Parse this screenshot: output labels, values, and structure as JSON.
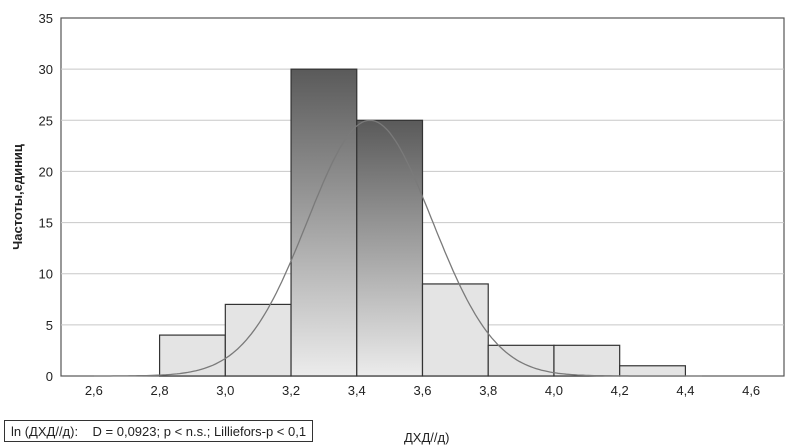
{
  "chart_data": {
    "type": "bar",
    "subtype": "histogram",
    "ylabel": "Частоты,единиц",
    "xlabel": "ДХД//д)",
    "xlim": [
      2.5,
      4.7
    ],
    "ylim": [
      0,
      35
    ],
    "x_ticks": [
      "2,6",
      "2,8",
      "3,0",
      "3,2",
      "3,4",
      "3,6",
      "3,8",
      "4,0",
      "4,2",
      "4,4",
      "4,6"
    ],
    "y_ticks": [
      "0",
      "5",
      "10",
      "15",
      "20",
      "25",
      "30",
      "35"
    ],
    "bins": [
      {
        "x0": 2.8,
        "x1": 3.0,
        "value": 4
      },
      {
        "x0": 3.0,
        "x1": 3.2,
        "value": 7
      },
      {
        "x0": 3.2,
        "x1": 3.4,
        "value": 30
      },
      {
        "x0": 3.4,
        "x1": 3.6,
        "value": 25
      },
      {
        "x0": 3.6,
        "x1": 3.8,
        "value": 9
      },
      {
        "x0": 3.8,
        "x1": 4.0,
        "value": 3
      },
      {
        "x0": 4.0,
        "x1": 4.2,
        "value": 3
      },
      {
        "x0": 4.2,
        "x1": 4.4,
        "value": 1
      }
    ],
    "fit_curve": {
      "type": "normal",
      "mean": 3.44,
      "sd": 0.19,
      "peak": 25
    },
    "grid": true,
    "stats_text": "ln (ДХД//д):    D = 0,0923; p < n.s.; Lilliefors-p < 0,1"
  }
}
